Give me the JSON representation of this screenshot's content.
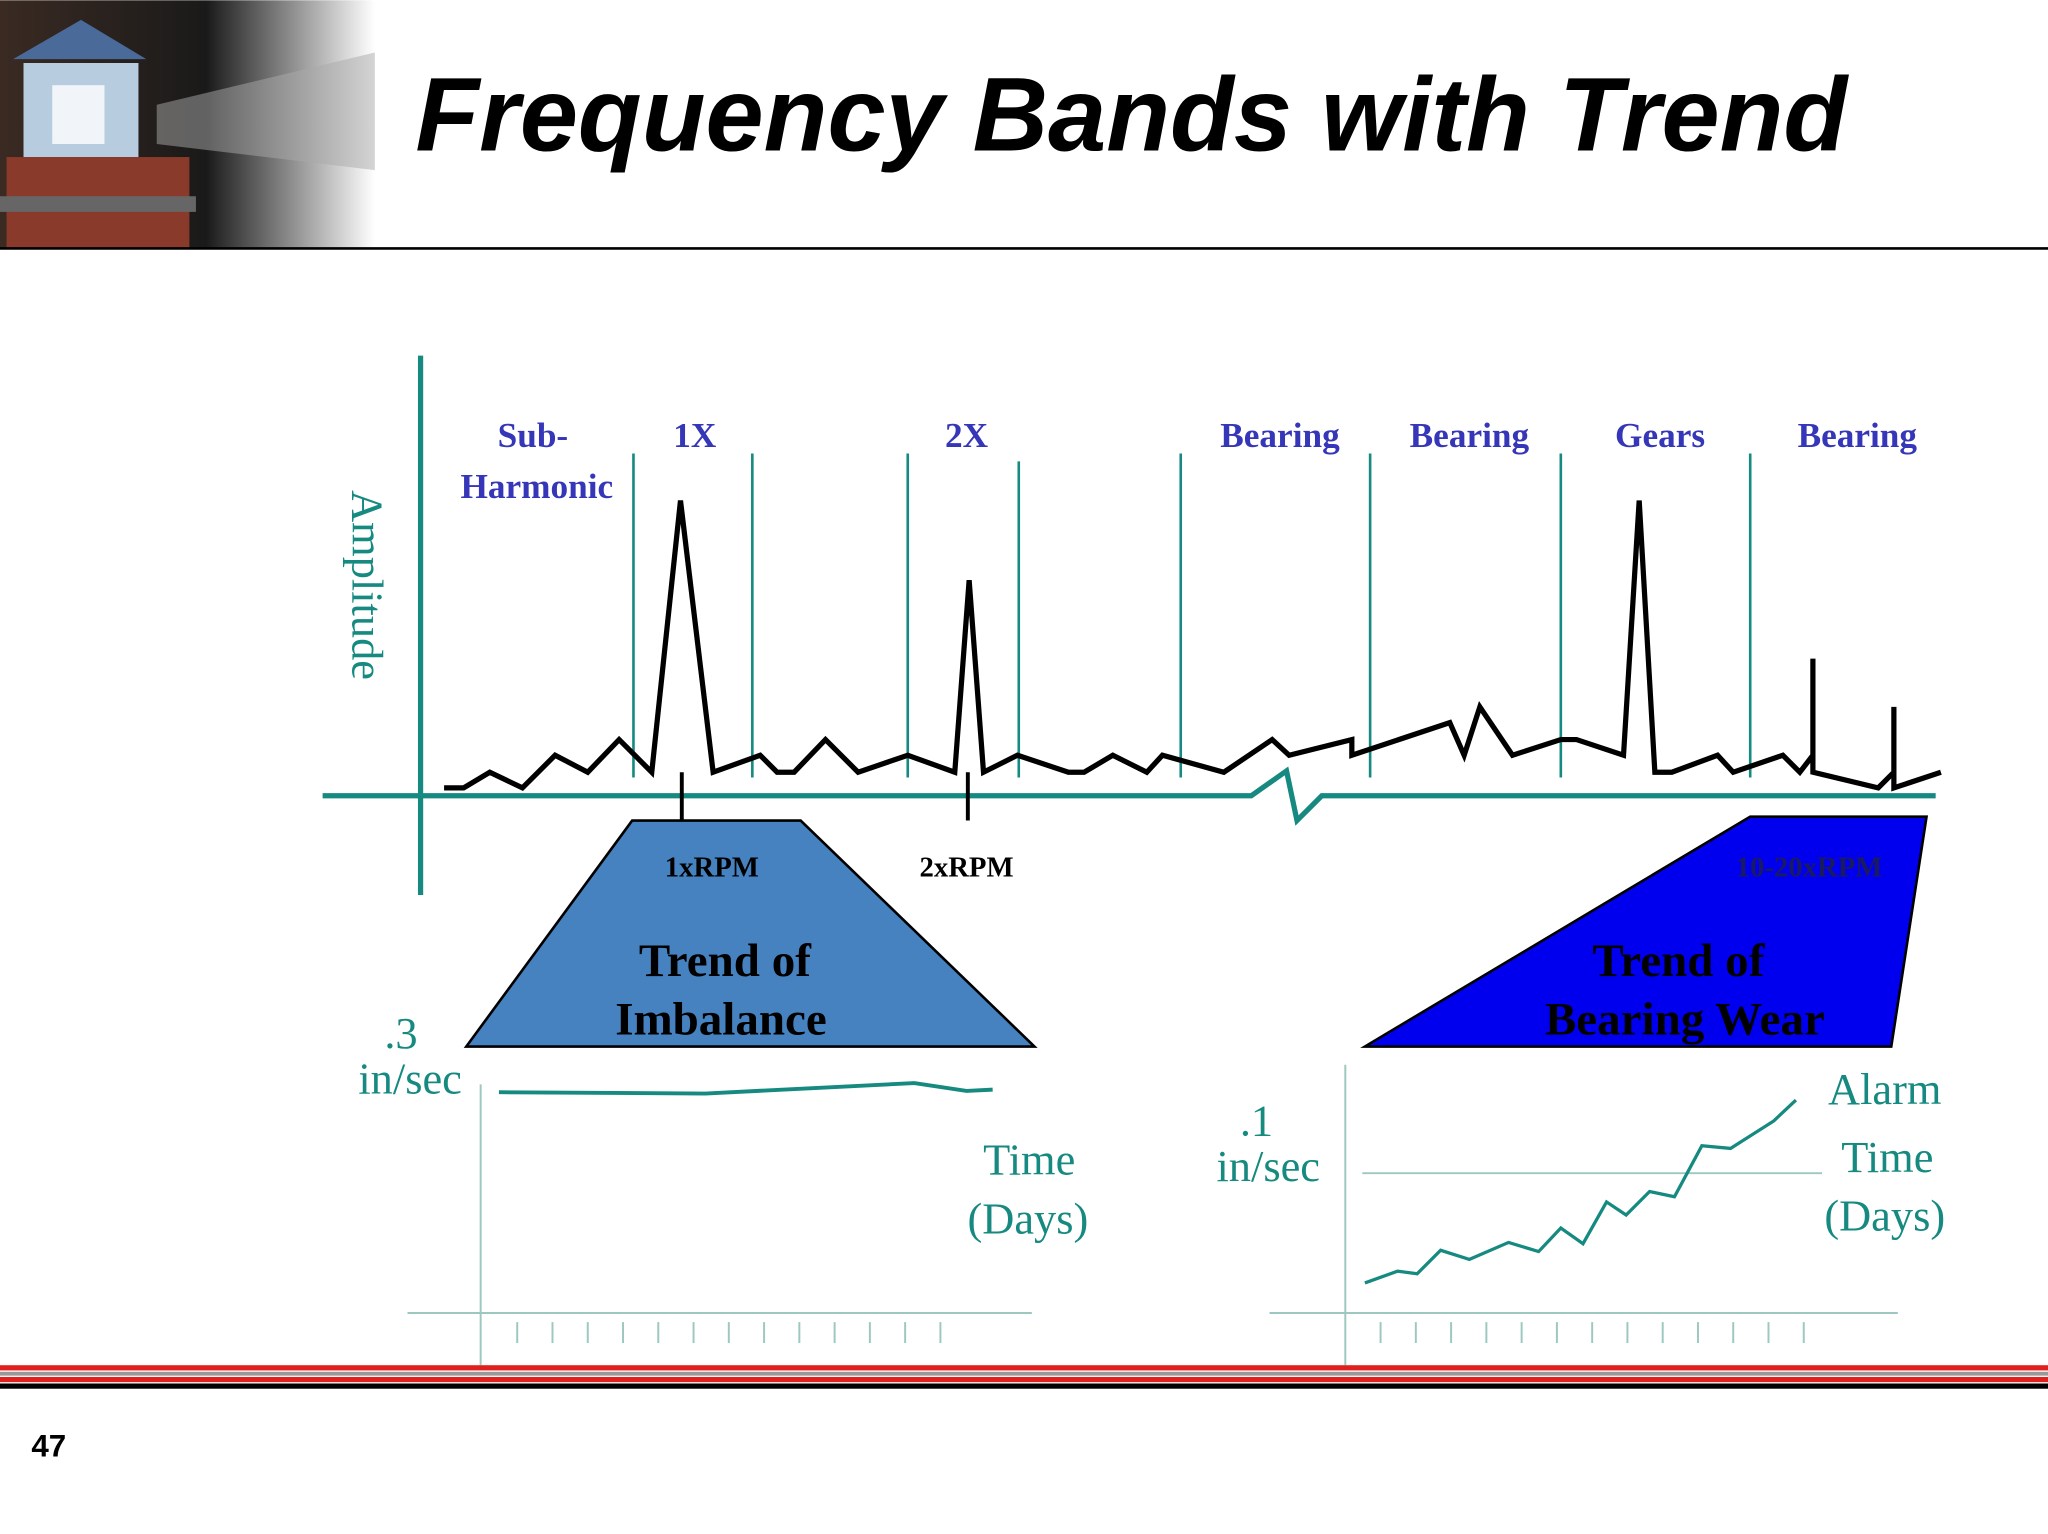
{
  "header": {
    "title": "Frequency Bands with Trend"
  },
  "spectrum": {
    "axis_label": "Amplitude",
    "bands": [
      [
        "Sub-",
        "Harmonic"
      ],
      [
        "1X"
      ],
      [
        "2X"
      ],
      [
        "Bearing"
      ],
      [
        "Bearing"
      ],
      [
        "Gears"
      ],
      [
        "Bearing"
      ]
    ],
    "markers": [
      "1xRPM",
      "2xRPM",
      "10-20xRPM"
    ]
  },
  "trends": [
    {
      "title": [
        "Trend of",
        "Imbalance"
      ],
      "scale": [
        ".3",
        "in/sec"
      ],
      "x_label": [
        "Time",
        "(Days)"
      ]
    },
    {
      "title": [
        "Trend of",
        "Bearing Wear"
      ],
      "scale": [
        ".1",
        "in/sec"
      ],
      "alarm": "Alarm",
      "x_label": [
        "Time",
        "(Days)"
      ]
    }
  ],
  "footer": {
    "page_number": "47"
  }
}
